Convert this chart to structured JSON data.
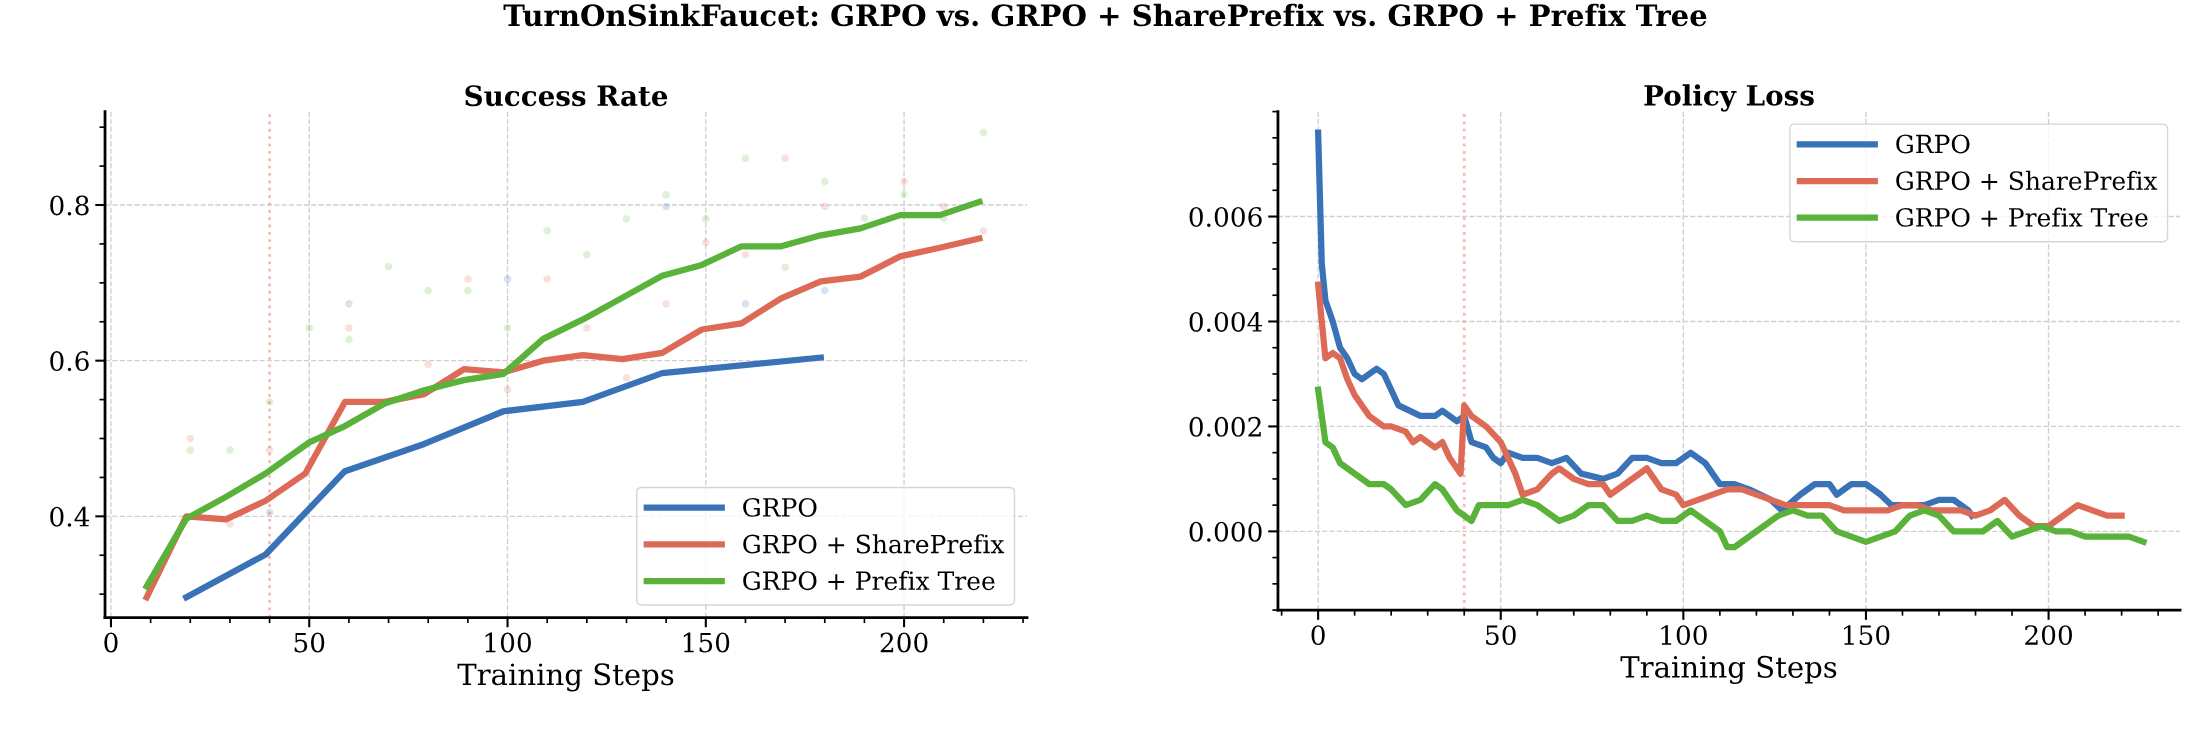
{
  "chart_data": [
    {
      "type": "line",
      "title": "Success Rate",
      "xlabel": "Training Steps",
      "annotations": [
        "TurnOnSinkFaucet: GRPO vs. GRPO + SharePrefix vs. GRPO + Prefix Tree"
      ],
      "xlim": [
        -1.5,
        231
      ],
      "xticks": [
        0,
        50,
        100,
        150,
        200
      ],
      "ylim": [
        0.27,
        0.92
      ],
      "yticks": [
        0.4,
        0.6,
        0.8
      ],
      "grid": true,
      "legend": "lower right",
      "ref_lines": [
        {
          "axis": "x",
          "value": 40,
          "color": "#f4a9a0",
          "line_style": "dotted"
        }
      ],
      "series": [
        {
          "name": "GRPO",
          "color": "#3a72b8",
          "x": [
            19,
            39,
            59,
            79,
            99,
            119,
            139,
            159,
            179
          ],
          "values": [
            0.296,
            0.351,
            0.458,
            0.493,
            0.535,
            0.547,
            0.584,
            0.594,
            0.604
          ]
        },
        {
          "name": "GRPO + SharePrefix",
          "color": "#dd6a56",
          "x": [
            9,
            19,
            29,
            39,
            49,
            59,
            69,
            79,
            89,
            99,
            109,
            119,
            129,
            139,
            149,
            159,
            169,
            179,
            189,
            199,
            209,
            219
          ],
          "values": [
            0.296,
            0.4,
            0.396,
            0.42,
            0.455,
            0.547,
            0.547,
            0.557,
            0.589,
            0.585,
            0.6,
            0.607,
            0.602,
            0.61,
            0.64,
            0.648,
            0.68,
            0.702,
            0.708,
            0.734,
            0.745,
            0.757
          ]
        },
        {
          "name": "GRPO + Prefix Tree",
          "color": "#5ab23a",
          "x": [
            9,
            19,
            29,
            39,
            50,
            59,
            69,
            79,
            89,
            99,
            109,
            119,
            129,
            139,
            149,
            159,
            169,
            179,
            189,
            199,
            209,
            219
          ],
          "values": [
            0.31,
            0.397,
            0.425,
            0.455,
            0.495,
            0.516,
            0.545,
            0.562,
            0.575,
            0.583,
            0.628,
            0.653,
            0.681,
            0.709,
            0.723,
            0.747,
            0.747,
            0.761,
            0.77,
            0.787,
            0.787,
            0.804
          ]
        },
        {
          "type": "scatter",
          "color": "#3a72b8",
          "x": [
            40,
            60,
            80,
            100,
            120,
            140,
            160,
            180
          ],
          "values": [
            0.405,
            0.673,
            null,
            0.705,
            null,
            0.798,
            0.673,
            0.69
          ]
        },
        {
          "type": "scatter",
          "color": "#dd6a56",
          "x": [
            20,
            30,
            40,
            60,
            80,
            90,
            100,
            110,
            120,
            130,
            140,
            150,
            160,
            170,
            180,
            200,
            210,
            220
          ],
          "values": [
            0.5,
            0.39,
            0.485,
            0.642,
            0.595,
            0.705,
            0.563,
            0.705,
            0.642,
            0.578,
            0.673,
            0.752,
            0.736,
            0.86,
            0.798,
            0.83,
            0.798,
            0.767
          ]
        },
        {
          "type": "scatter",
          "color": "#5ab23a",
          "x": [
            20,
            30,
            40,
            50,
            60,
            70,
            80,
            90,
            100,
            110,
            120,
            130,
            140,
            150,
            160,
            170,
            180,
            190,
            200,
            210,
            220
          ],
          "values": [
            0.485,
            0.485,
            0.547,
            0.642,
            0.627,
            0.721,
            0.69,
            0.69,
            0.642,
            0.767,
            0.736,
            0.782,
            0.813,
            0.782,
            0.86,
            0.72,
            0.83,
            0.783,
            0.814,
            0.783,
            0.893
          ]
        }
      ]
    },
    {
      "type": "line",
      "title": "Policy Loss",
      "xlabel": "Training Steps",
      "xlim": [
        -11,
        236
      ],
      "xticks": [
        0,
        50,
        100,
        150,
        200
      ],
      "ylim": [
        -0.0015,
        0.008
      ],
      "yticks": [
        {
          "value": 0,
          "label": "0.000"
        },
        {
          "value": 0.002,
          "label": "0.002"
        },
        {
          "value": 0.004,
          "label": "0.004"
        },
        {
          "value": 0.006,
          "label": "0.006"
        }
      ],
      "grid": true,
      "legend": "top right",
      "ref_lines": [
        {
          "axis": "x",
          "value": 40,
          "color": "#f4a9a0",
          "line_style": "dotted"
        }
      ],
      "series": [
        {
          "name": "GRPO",
          "color": "#3a72b8",
          "x": [
            0,
            1,
            2,
            4,
            6,
            8,
            10,
            12,
            14,
            16,
            18,
            20,
            22,
            25,
            28,
            32,
            34,
            38,
            40,
            42,
            46,
            48,
            50,
            52,
            56,
            60,
            64,
            68,
            72,
            78,
            82,
            86,
            90,
            94,
            98,
            102,
            106,
            110,
            114,
            118,
            124,
            127,
            132,
            136,
            140,
            142,
            146,
            150,
            154,
            157,
            162,
            166,
            170,
            174,
            178,
            179
          ],
          "values": [
            0.0076,
            0.0051,
            0.0044,
            0.004,
            0.0035,
            0.0033,
            0.003,
            0.0029,
            0.003,
            0.0031,
            0.003,
            0.0027,
            0.0024,
            0.0023,
            0.0022,
            0.0022,
            0.0023,
            0.0021,
            0.0022,
            0.0017,
            0.0016,
            0.0014,
            0.0013,
            0.0015,
            0.0014,
            0.0014,
            0.0013,
            0.0014,
            0.0011,
            0.001,
            0.0011,
            0.0014,
            0.0014,
            0.0013,
            0.0013,
            0.0015,
            0.0013,
            0.0009,
            0.0009,
            0.0008,
            0.0006,
            0.0004,
            0.0007,
            0.0009,
            0.0009,
            0.0007,
            0.0009,
            0.0009,
            0.0007,
            0.0005,
            0.0005,
            0.0005,
            0.0006,
            0.0006,
            0.0004,
            0.0003
          ]
        },
        {
          "name": "GRPO + SharePrefix",
          "color": "#dd6a56",
          "x": [
            0,
            1,
            2,
            4,
            6,
            8,
            10,
            14,
            18,
            20,
            24,
            26,
            28,
            30,
            32,
            34,
            36,
            39,
            40,
            42,
            46,
            50,
            54,
            56,
            60,
            64,
            66,
            70,
            74,
            78,
            80,
            84,
            90,
            94,
            98,
            100,
            104,
            108,
            112,
            116,
            120,
            124,
            128,
            132,
            136,
            140,
            144,
            148,
            152,
            156,
            160,
            164,
            168,
            172,
            176,
            180,
            184,
            188,
            192,
            196,
            200,
            204,
            208,
            212,
            216,
            220
          ],
          "values": [
            0.0047,
            0.004,
            0.0033,
            0.0034,
            0.0033,
            0.0029,
            0.0026,
            0.0022,
            0.002,
            0.002,
            0.0019,
            0.0017,
            0.0018,
            0.0017,
            0.0016,
            0.0017,
            0.0014,
            0.0011,
            0.0024,
            0.0022,
            0.002,
            0.0017,
            0.0011,
            0.0007,
            0.0008,
            0.0011,
            0.0012,
            0.001,
            0.0009,
            0.0009,
            0.0007,
            0.0009,
            0.0012,
            0.0008,
            0.0007,
            0.0005,
            0.0006,
            0.0007,
            0.0008,
            0.0008,
            0.0007,
            0.0006,
            0.0005,
            0.0005,
            0.0005,
            0.0005,
            0.0004,
            0.0004,
            0.0004,
            0.0004,
            0.0005,
            0.0005,
            0.0004,
            0.0004,
            0.0004,
            0.0003,
            0.0004,
            0.0006,
            0.0003,
            0.0001,
            0.0001,
            0.0003,
            0.0005,
            0.0004,
            0.0003,
            0.0003
          ]
        },
        {
          "name": "GRPO + Prefix Tree",
          "color": "#5ab23a",
          "x": [
            0,
            1,
            2,
            4,
            6,
            10,
            14,
            18,
            20,
            24,
            28,
            32,
            34,
            38,
            40,
            42,
            44,
            48,
            52,
            56,
            60,
            64,
            66,
            70,
            74,
            78,
            82,
            86,
            90,
            94,
            98,
            102,
            106,
            110,
            112,
            114,
            118,
            122,
            126,
            130,
            134,
            138,
            142,
            146,
            150,
            154,
            158,
            162,
            166,
            170,
            174,
            178,
            182,
            186,
            190,
            194,
            198,
            202,
            206,
            210,
            214,
            218,
            222,
            226
          ],
          "values": [
            0.0027,
            0.0022,
            0.0017,
            0.0016,
            0.0013,
            0.0011,
            0.0009,
            0.0009,
            0.0008,
            0.0005,
            0.0006,
            0.0009,
            0.0008,
            0.0004,
            0.0003,
            0.0002,
            0.0005,
            0.0005,
            0.0005,
            0.0006,
            0.0005,
            0.0003,
            0.0002,
            0.0003,
            0.0005,
            0.0005,
            0.0002,
            0.0002,
            0.0003,
            0.0002,
            0.0002,
            0.0004,
            0.0002,
            0.0,
            -0.0003,
            -0.0003,
            -0.0001,
            0.0001,
            0.0003,
            0.0004,
            0.0003,
            0.0003,
            0.0,
            -0.0001,
            -0.0002,
            -0.0001,
            0.0,
            0.0003,
            0.0004,
            0.0003,
            0.0,
            0.0,
            0.0,
            0.0002,
            -0.0001,
            0.0,
            0.0001,
            0.0,
            0.0,
            -0.0001,
            -0.0001,
            -0.0001,
            -0.0001,
            -0.0002
          ]
        }
      ]
    }
  ]
}
